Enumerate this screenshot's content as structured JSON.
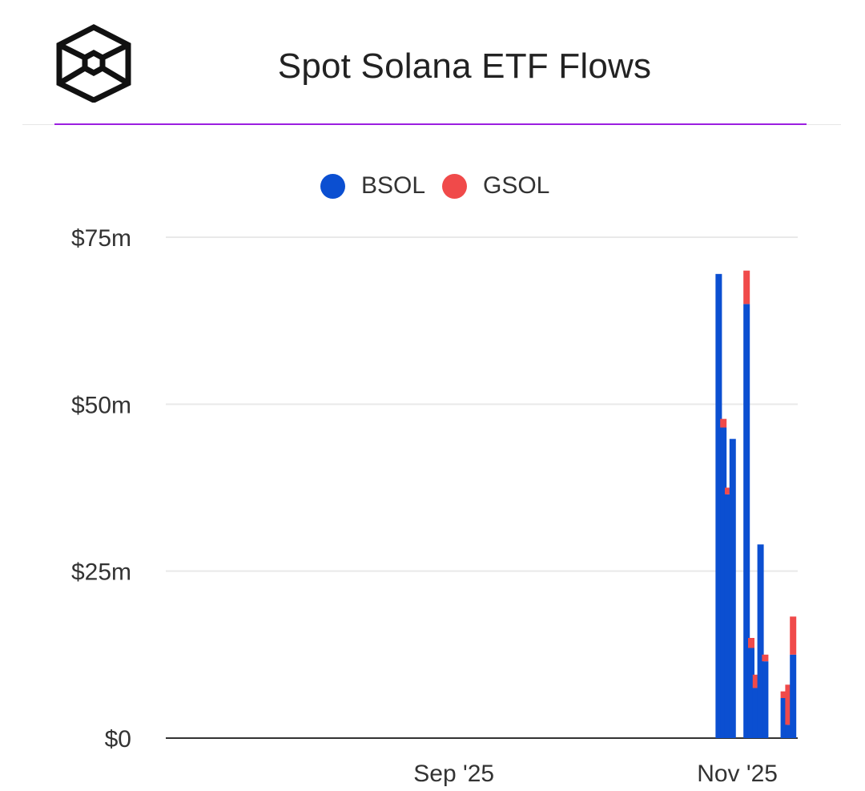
{
  "header": {
    "title": "Spot Solana ETF Flows",
    "logo_icon": "cube-logo-icon"
  },
  "colors": {
    "accent_rule": "#9b1fe0",
    "bsol": "#0b4fd1",
    "gsol": "#f04a4a"
  },
  "chart_data": {
    "type": "bar",
    "stacked": true,
    "title": "Spot Solana ETF Flows",
    "xlabel": "",
    "ylabel": "",
    "y_ticks": [
      "$0",
      "$25m",
      "$50m",
      "$75m"
    ],
    "y_tick_values": [
      0,
      25,
      50,
      75
    ],
    "ylim": [
      0,
      75
    ],
    "x_ticks": [
      "Sep '25",
      "Nov '25"
    ],
    "legend_position": "top-center",
    "grid": true,
    "categories": [
      "2025-10-28",
      "2025-10-29",
      "2025-10-30",
      "2025-10-31",
      "2025-11-03",
      "2025-11-04",
      "2025-11-05",
      "2025-11-06",
      "2025-11-07",
      "2025-11-10",
      "2025-11-11",
      "2025-11-12",
      "2025-11-13"
    ],
    "series": [
      {
        "name": "BSOL",
        "color": "#0b4fd1",
        "values": [
          69.5,
          46.5,
          36.5,
          44.8,
          65.0,
          13.5,
          7.5,
          29.0,
          11.5,
          0,
          6.0,
          2.0,
          12.5
        ]
      },
      {
        "name": "GSOL",
        "color": "#f04a4a",
        "values": [
          0,
          1.3,
          1.0,
          0,
          5.0,
          1.5,
          2.0,
          0,
          1.0,
          0,
          1.0,
          6.0,
          5.7
        ]
      }
    ]
  }
}
